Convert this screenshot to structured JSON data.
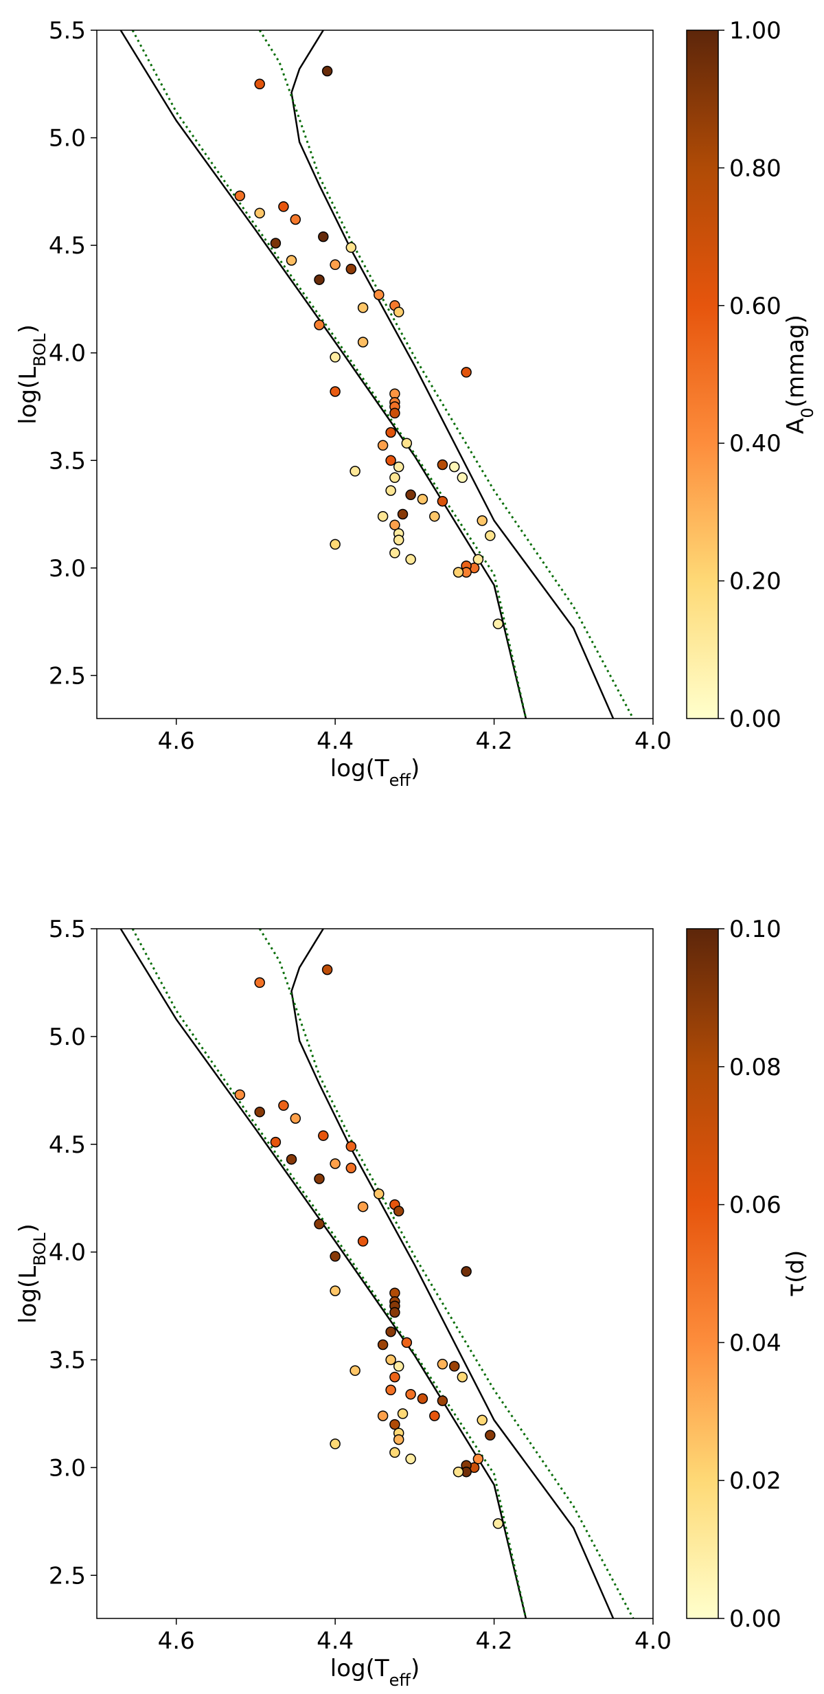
{
  "colormap_stops": [
    "#ffffcc",
    "#fed976",
    "#fd8d3c",
    "#e6550d",
    "#b04b06",
    "#5d260a"
  ],
  "chart_data": [
    {
      "type": "scatter",
      "xlabel": "log(T_eff)",
      "ylabel": "log(L_BOL)",
      "xlim": [
        4.7,
        4.0
      ],
      "ylim": [
        2.3,
        5.5
      ],
      "x_ticks": [
        "4.6",
        "4.4",
        "4.2",
        "4.0"
      ],
      "y_ticks": [
        "2.5",
        "3.0",
        "3.5",
        "4.0",
        "4.5",
        "5.0",
        "5.5"
      ],
      "colorbar": {
        "label": "A_0(mmag)",
        "range": [
          0,
          1
        ],
        "ticks": [
          "0.00",
          "0.20",
          "0.40",
          "0.60",
          "0.80",
          "1.00"
        ]
      },
      "lines": [
        {
          "style": "solid",
          "points": [
            [
              4.67,
              5.5
            ],
            [
              4.6,
              5.08
            ],
            [
              4.5,
              4.57
            ],
            [
              4.4,
              4.05
            ],
            [
              4.3,
              3.52
            ],
            [
              4.2,
              2.92
            ],
            [
              4.16,
              2.3
            ]
          ]
        },
        {
          "style": "solid",
          "points": [
            [
              4.415,
              5.5
            ],
            [
              4.425,
              5.44
            ],
            [
              4.445,
              5.32
            ],
            [
              4.455,
              5.21
            ],
            [
              4.445,
              4.98
            ],
            [
              4.42,
              4.78
            ],
            [
              4.38,
              4.48
            ],
            [
              4.3,
              3.94
            ],
            [
              4.2,
              3.22
            ],
            [
              4.1,
              2.72
            ],
            [
              4.05,
              2.3
            ]
          ]
        },
        {
          "style": "dotted",
          "points": [
            [
              4.655,
              5.5
            ],
            [
              4.6,
              5.12
            ],
            [
              4.5,
              4.59
            ],
            [
              4.4,
              4.07
            ],
            [
              4.3,
              3.53
            ],
            [
              4.2,
              2.97
            ],
            [
              4.16,
              2.3
            ]
          ]
        },
        {
          "style": "dotted",
          "points": [
            [
              4.495,
              5.5
            ],
            [
              4.47,
              5.35
            ],
            [
              4.45,
              5.14
            ],
            [
              4.42,
              4.82
            ],
            [
              4.38,
              4.52
            ],
            [
              4.3,
              3.98
            ],
            [
              4.2,
              3.36
            ],
            [
              4.1,
              2.82
            ],
            [
              4.025,
              2.3
            ]
          ]
        }
      ],
      "points": [
        {
          "x": 4.41,
          "y": 5.31,
          "c": 0.97
        },
        {
          "x": 4.495,
          "y": 5.25,
          "c": 0.62
        },
        {
          "x": 4.52,
          "y": 4.73,
          "c": 0.5
        },
        {
          "x": 4.495,
          "y": 4.65,
          "c": 0.25
        },
        {
          "x": 4.465,
          "y": 4.68,
          "c": 0.6
        },
        {
          "x": 4.45,
          "y": 4.62,
          "c": 0.47
        },
        {
          "x": 4.475,
          "y": 4.51,
          "c": 0.93
        },
        {
          "x": 4.455,
          "y": 4.43,
          "c": 0.27
        },
        {
          "x": 4.415,
          "y": 4.54,
          "c": 0.98
        },
        {
          "x": 4.38,
          "y": 4.49,
          "c": 0.15
        },
        {
          "x": 4.4,
          "y": 4.41,
          "c": 0.35
        },
        {
          "x": 4.38,
          "y": 4.39,
          "c": 0.88
        },
        {
          "x": 4.42,
          "y": 4.34,
          "c": 0.97
        },
        {
          "x": 4.345,
          "y": 4.27,
          "c": 0.4
        },
        {
          "x": 4.365,
          "y": 4.21,
          "c": 0.25
        },
        {
          "x": 4.325,
          "y": 4.22,
          "c": 0.47
        },
        {
          "x": 4.32,
          "y": 4.19,
          "c": 0.23
        },
        {
          "x": 4.42,
          "y": 4.13,
          "c": 0.45
        },
        {
          "x": 4.365,
          "y": 4.05,
          "c": 0.27
        },
        {
          "x": 4.4,
          "y": 3.98,
          "c": 0.1
        },
        {
          "x": 4.235,
          "y": 3.91,
          "c": 0.62
        },
        {
          "x": 4.4,
          "y": 3.82,
          "c": 0.58
        },
        {
          "x": 4.325,
          "y": 3.81,
          "c": 0.38
        },
        {
          "x": 4.325,
          "y": 3.77,
          "c": 0.45
        },
        {
          "x": 4.325,
          "y": 3.75,
          "c": 0.5
        },
        {
          "x": 4.325,
          "y": 3.72,
          "c": 0.7
        },
        {
          "x": 4.33,
          "y": 3.63,
          "c": 0.62
        },
        {
          "x": 4.34,
          "y": 3.57,
          "c": 0.35
        },
        {
          "x": 4.31,
          "y": 3.58,
          "c": 0.15
        },
        {
          "x": 4.33,
          "y": 3.5,
          "c": 0.6
        },
        {
          "x": 4.32,
          "y": 3.47,
          "c": 0.1
        },
        {
          "x": 4.375,
          "y": 3.45,
          "c": 0.12
        },
        {
          "x": 4.325,
          "y": 3.42,
          "c": 0.13
        },
        {
          "x": 4.265,
          "y": 3.48,
          "c": 0.78
        },
        {
          "x": 4.25,
          "y": 3.47,
          "c": 0.05
        },
        {
          "x": 4.24,
          "y": 3.42,
          "c": 0.05
        },
        {
          "x": 4.33,
          "y": 3.36,
          "c": 0.13
        },
        {
          "x": 4.305,
          "y": 3.34,
          "c": 0.93
        },
        {
          "x": 4.29,
          "y": 3.32,
          "c": 0.25
        },
        {
          "x": 4.265,
          "y": 3.31,
          "c": 0.65
        },
        {
          "x": 4.315,
          "y": 3.25,
          "c": 0.9
        },
        {
          "x": 4.34,
          "y": 3.24,
          "c": 0.13
        },
        {
          "x": 4.275,
          "y": 3.24,
          "c": 0.25
        },
        {
          "x": 4.325,
          "y": 3.2,
          "c": 0.35
        },
        {
          "x": 4.32,
          "y": 3.16,
          "c": 0.1
        },
        {
          "x": 4.32,
          "y": 3.13,
          "c": 0.12
        },
        {
          "x": 4.215,
          "y": 3.22,
          "c": 0.25
        },
        {
          "x": 4.205,
          "y": 3.15,
          "c": 0.15
        },
        {
          "x": 4.4,
          "y": 3.11,
          "c": 0.2
        },
        {
          "x": 4.325,
          "y": 3.07,
          "c": 0.12
        },
        {
          "x": 4.305,
          "y": 3.04,
          "c": 0.12
        },
        {
          "x": 4.22,
          "y": 3.04,
          "c": 0.12
        },
        {
          "x": 4.225,
          "y": 3.0,
          "c": 0.5
        },
        {
          "x": 4.235,
          "y": 3.01,
          "c": 0.55
        },
        {
          "x": 4.235,
          "y": 2.98,
          "c": 0.45
        },
        {
          "x": 4.245,
          "y": 2.98,
          "c": 0.22
        },
        {
          "x": 4.195,
          "y": 2.74,
          "c": 0.08
        }
      ]
    },
    {
      "type": "scatter",
      "xlabel": "log(T_eff)",
      "ylabel": "log(L_BOL)",
      "xlim": [
        4.7,
        4.0
      ],
      "ylim": [
        2.3,
        5.5
      ],
      "x_ticks": [
        "4.6",
        "4.4",
        "4.2",
        "4.0"
      ],
      "y_ticks": [
        "2.5",
        "3.0",
        "3.5",
        "4.0",
        "4.5",
        "5.0",
        "5.5"
      ],
      "colorbar": {
        "label": "τ(d)",
        "range": [
          0,
          0.1
        ],
        "ticks": [
          "0.00",
          "0.02",
          "0.04",
          "0.06",
          "0.08",
          "0.10"
        ]
      },
      "lines": [
        {
          "style": "solid",
          "points": [
            [
              4.67,
              5.5
            ],
            [
              4.6,
              5.08
            ],
            [
              4.5,
              4.57
            ],
            [
              4.4,
              4.05
            ],
            [
              4.3,
              3.52
            ],
            [
              4.2,
              2.92
            ],
            [
              4.16,
              2.3
            ]
          ]
        },
        {
          "style": "solid",
          "points": [
            [
              4.415,
              5.5
            ],
            [
              4.425,
              5.44
            ],
            [
              4.445,
              5.32
            ],
            [
              4.455,
              5.21
            ],
            [
              4.445,
              4.98
            ],
            [
              4.42,
              4.78
            ],
            [
              4.38,
              4.48
            ],
            [
              4.3,
              3.94
            ],
            [
              4.2,
              3.22
            ],
            [
              4.1,
              2.72
            ],
            [
              4.05,
              2.3
            ]
          ]
        },
        {
          "style": "dotted",
          "points": [
            [
              4.655,
              5.5
            ],
            [
              4.6,
              5.12
            ],
            [
              4.5,
              4.59
            ],
            [
              4.4,
              4.07
            ],
            [
              4.3,
              3.53
            ],
            [
              4.2,
              2.97
            ],
            [
              4.16,
              2.3
            ]
          ]
        },
        {
          "style": "dotted",
          "points": [
            [
              4.495,
              5.5
            ],
            [
              4.47,
              5.35
            ],
            [
              4.45,
              5.14
            ],
            [
              4.42,
              4.82
            ],
            [
              4.38,
              4.52
            ],
            [
              4.3,
              3.98
            ],
            [
              4.2,
              3.36
            ],
            [
              4.1,
              2.82
            ],
            [
              4.025,
              2.3
            ]
          ]
        }
      ],
      "points": [
        {
          "x": 4.41,
          "y": 5.31,
          "c": 0.075
        },
        {
          "x": 4.495,
          "y": 5.25,
          "c": 0.05
        },
        {
          "x": 4.52,
          "y": 4.73,
          "c": 0.04
        },
        {
          "x": 4.495,
          "y": 4.65,
          "c": 0.09
        },
        {
          "x": 4.465,
          "y": 4.68,
          "c": 0.055
        },
        {
          "x": 4.45,
          "y": 4.62,
          "c": 0.035
        },
        {
          "x": 4.475,
          "y": 4.51,
          "c": 0.06
        },
        {
          "x": 4.455,
          "y": 4.43,
          "c": 0.09
        },
        {
          "x": 4.415,
          "y": 4.54,
          "c": 0.06
        },
        {
          "x": 4.38,
          "y": 4.49,
          "c": 0.055
        },
        {
          "x": 4.4,
          "y": 4.41,
          "c": 0.035
        },
        {
          "x": 4.38,
          "y": 4.39,
          "c": 0.05
        },
        {
          "x": 4.42,
          "y": 4.34,
          "c": 0.09
        },
        {
          "x": 4.345,
          "y": 4.27,
          "c": 0.025
        },
        {
          "x": 4.365,
          "y": 4.21,
          "c": 0.035
        },
        {
          "x": 4.325,
          "y": 4.22,
          "c": 0.06
        },
        {
          "x": 4.32,
          "y": 4.19,
          "c": 0.085
        },
        {
          "x": 4.42,
          "y": 4.13,
          "c": 0.09
        },
        {
          "x": 4.365,
          "y": 4.05,
          "c": 0.06
        },
        {
          "x": 4.4,
          "y": 3.98,
          "c": 0.09
        },
        {
          "x": 4.235,
          "y": 3.91,
          "c": 0.095
        },
        {
          "x": 4.4,
          "y": 3.82,
          "c": 0.025
        },
        {
          "x": 4.325,
          "y": 3.81,
          "c": 0.08
        },
        {
          "x": 4.325,
          "y": 3.77,
          "c": 0.085
        },
        {
          "x": 4.325,
          "y": 3.75,
          "c": 0.09
        },
        {
          "x": 4.325,
          "y": 3.72,
          "c": 0.09
        },
        {
          "x": 4.33,
          "y": 3.63,
          "c": 0.09
        },
        {
          "x": 4.34,
          "y": 3.57,
          "c": 0.085
        },
        {
          "x": 4.31,
          "y": 3.58,
          "c": 0.055
        },
        {
          "x": 4.33,
          "y": 3.5,
          "c": 0.025
        },
        {
          "x": 4.32,
          "y": 3.47,
          "c": 0.01
        },
        {
          "x": 4.375,
          "y": 3.45,
          "c": 0.025
        },
        {
          "x": 4.325,
          "y": 3.42,
          "c": 0.055
        },
        {
          "x": 4.265,
          "y": 3.48,
          "c": 0.03
        },
        {
          "x": 4.25,
          "y": 3.47,
          "c": 0.085
        },
        {
          "x": 4.24,
          "y": 3.42,
          "c": 0.02
        },
        {
          "x": 4.33,
          "y": 3.36,
          "c": 0.05
        },
        {
          "x": 4.305,
          "y": 3.34,
          "c": 0.05
        },
        {
          "x": 4.29,
          "y": 3.32,
          "c": 0.07
        },
        {
          "x": 4.265,
          "y": 3.31,
          "c": 0.085
        },
        {
          "x": 4.315,
          "y": 3.25,
          "c": 0.02
        },
        {
          "x": 4.34,
          "y": 3.24,
          "c": 0.035
        },
        {
          "x": 4.275,
          "y": 3.24,
          "c": 0.06
        },
        {
          "x": 4.325,
          "y": 3.2,
          "c": 0.08
        },
        {
          "x": 4.32,
          "y": 3.16,
          "c": 0.02
        },
        {
          "x": 4.32,
          "y": 3.13,
          "c": 0.03
        },
        {
          "x": 4.215,
          "y": 3.22,
          "c": 0.02
        },
        {
          "x": 4.205,
          "y": 3.15,
          "c": 0.09
        },
        {
          "x": 4.4,
          "y": 3.11,
          "c": 0.02
        },
        {
          "x": 4.325,
          "y": 3.07,
          "c": 0.02
        },
        {
          "x": 4.305,
          "y": 3.04,
          "c": 0.01
        },
        {
          "x": 4.22,
          "y": 3.04,
          "c": 0.04
        },
        {
          "x": 4.225,
          "y": 3.0,
          "c": 0.07
        },
        {
          "x": 4.235,
          "y": 3.01,
          "c": 0.09
        },
        {
          "x": 4.235,
          "y": 2.98,
          "c": 0.095
        },
        {
          "x": 4.245,
          "y": 2.98,
          "c": 0.015
        },
        {
          "x": 4.195,
          "y": 2.74,
          "c": 0.01
        }
      ]
    }
  ]
}
